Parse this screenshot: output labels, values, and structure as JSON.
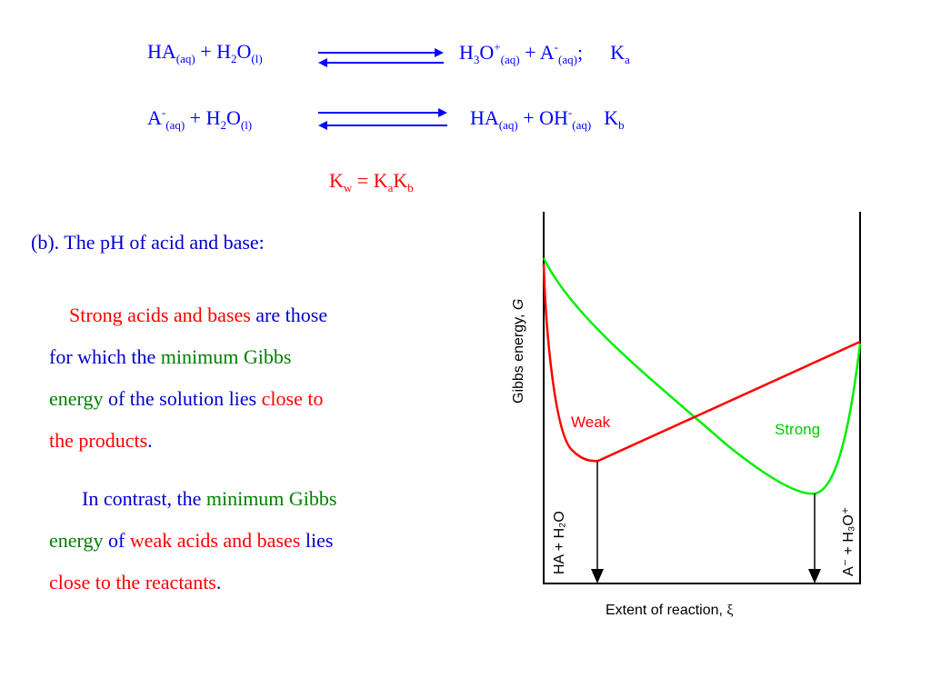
{
  "equations": {
    "eq1": {
      "lhs": [
        "HA",
        "(aq)",
        " + H",
        "2",
        "O",
        "(l)"
      ],
      "rhs": [
        "H",
        "3",
        "O",
        "+",
        "(aq)",
        " + A",
        "-",
        "(aq)",
        ";",
        "K",
        "a"
      ]
    },
    "eq2": {
      "lhs": [
        "A",
        "-",
        "(aq)",
        " + H",
        "2",
        "O",
        "(l)"
      ],
      "rhs": [
        "HA",
        "(aq)",
        " + OH",
        "-",
        "(aq)",
        "K",
        "b"
      ]
    },
    "kw": [
      "K",
      "w",
      " =  K",
      "a",
      "K",
      "b"
    ]
  },
  "section_title": "(b). The pH of acid and base:",
  "paragraph1": {
    "strong_acids_bases": "Strong acids and bases",
    "are_those": " are those",
    "for_which_the": "for which the ",
    "minimum_gibbs": "minimum Gibbs",
    "energy": "energy",
    "of_solution_lies": " of the solution lies ",
    "close_to": "close to",
    "the_products": "the products",
    "period": "."
  },
  "paragraph2": {
    "in_contrast": "In contrast, the ",
    "minimum_gibbs": "minimum Gibbs",
    "energy": "energy",
    "of": " of ",
    "weak_acids_bases": "weak acids and bases",
    "lies": " lies",
    "close_to_reactants": "close to the reactants",
    "period": "."
  },
  "diagram": {
    "y_axis_label": "Gibbs energy, ",
    "y_axis_symbol": "G",
    "x_axis_label": "Extent of reaction, ",
    "x_axis_symbol": "ξ",
    "weak_label": "Weak",
    "strong_label": "Strong",
    "reactants_label": "HA + H₂O",
    "products_label": "A⁻ + H₃O⁺",
    "colors": {
      "weak": "#ff0000",
      "strong": "#00ee00",
      "text_blue": "#0000cc",
      "highlight": "#ff0000",
      "gibbs": "#008000"
    }
  }
}
